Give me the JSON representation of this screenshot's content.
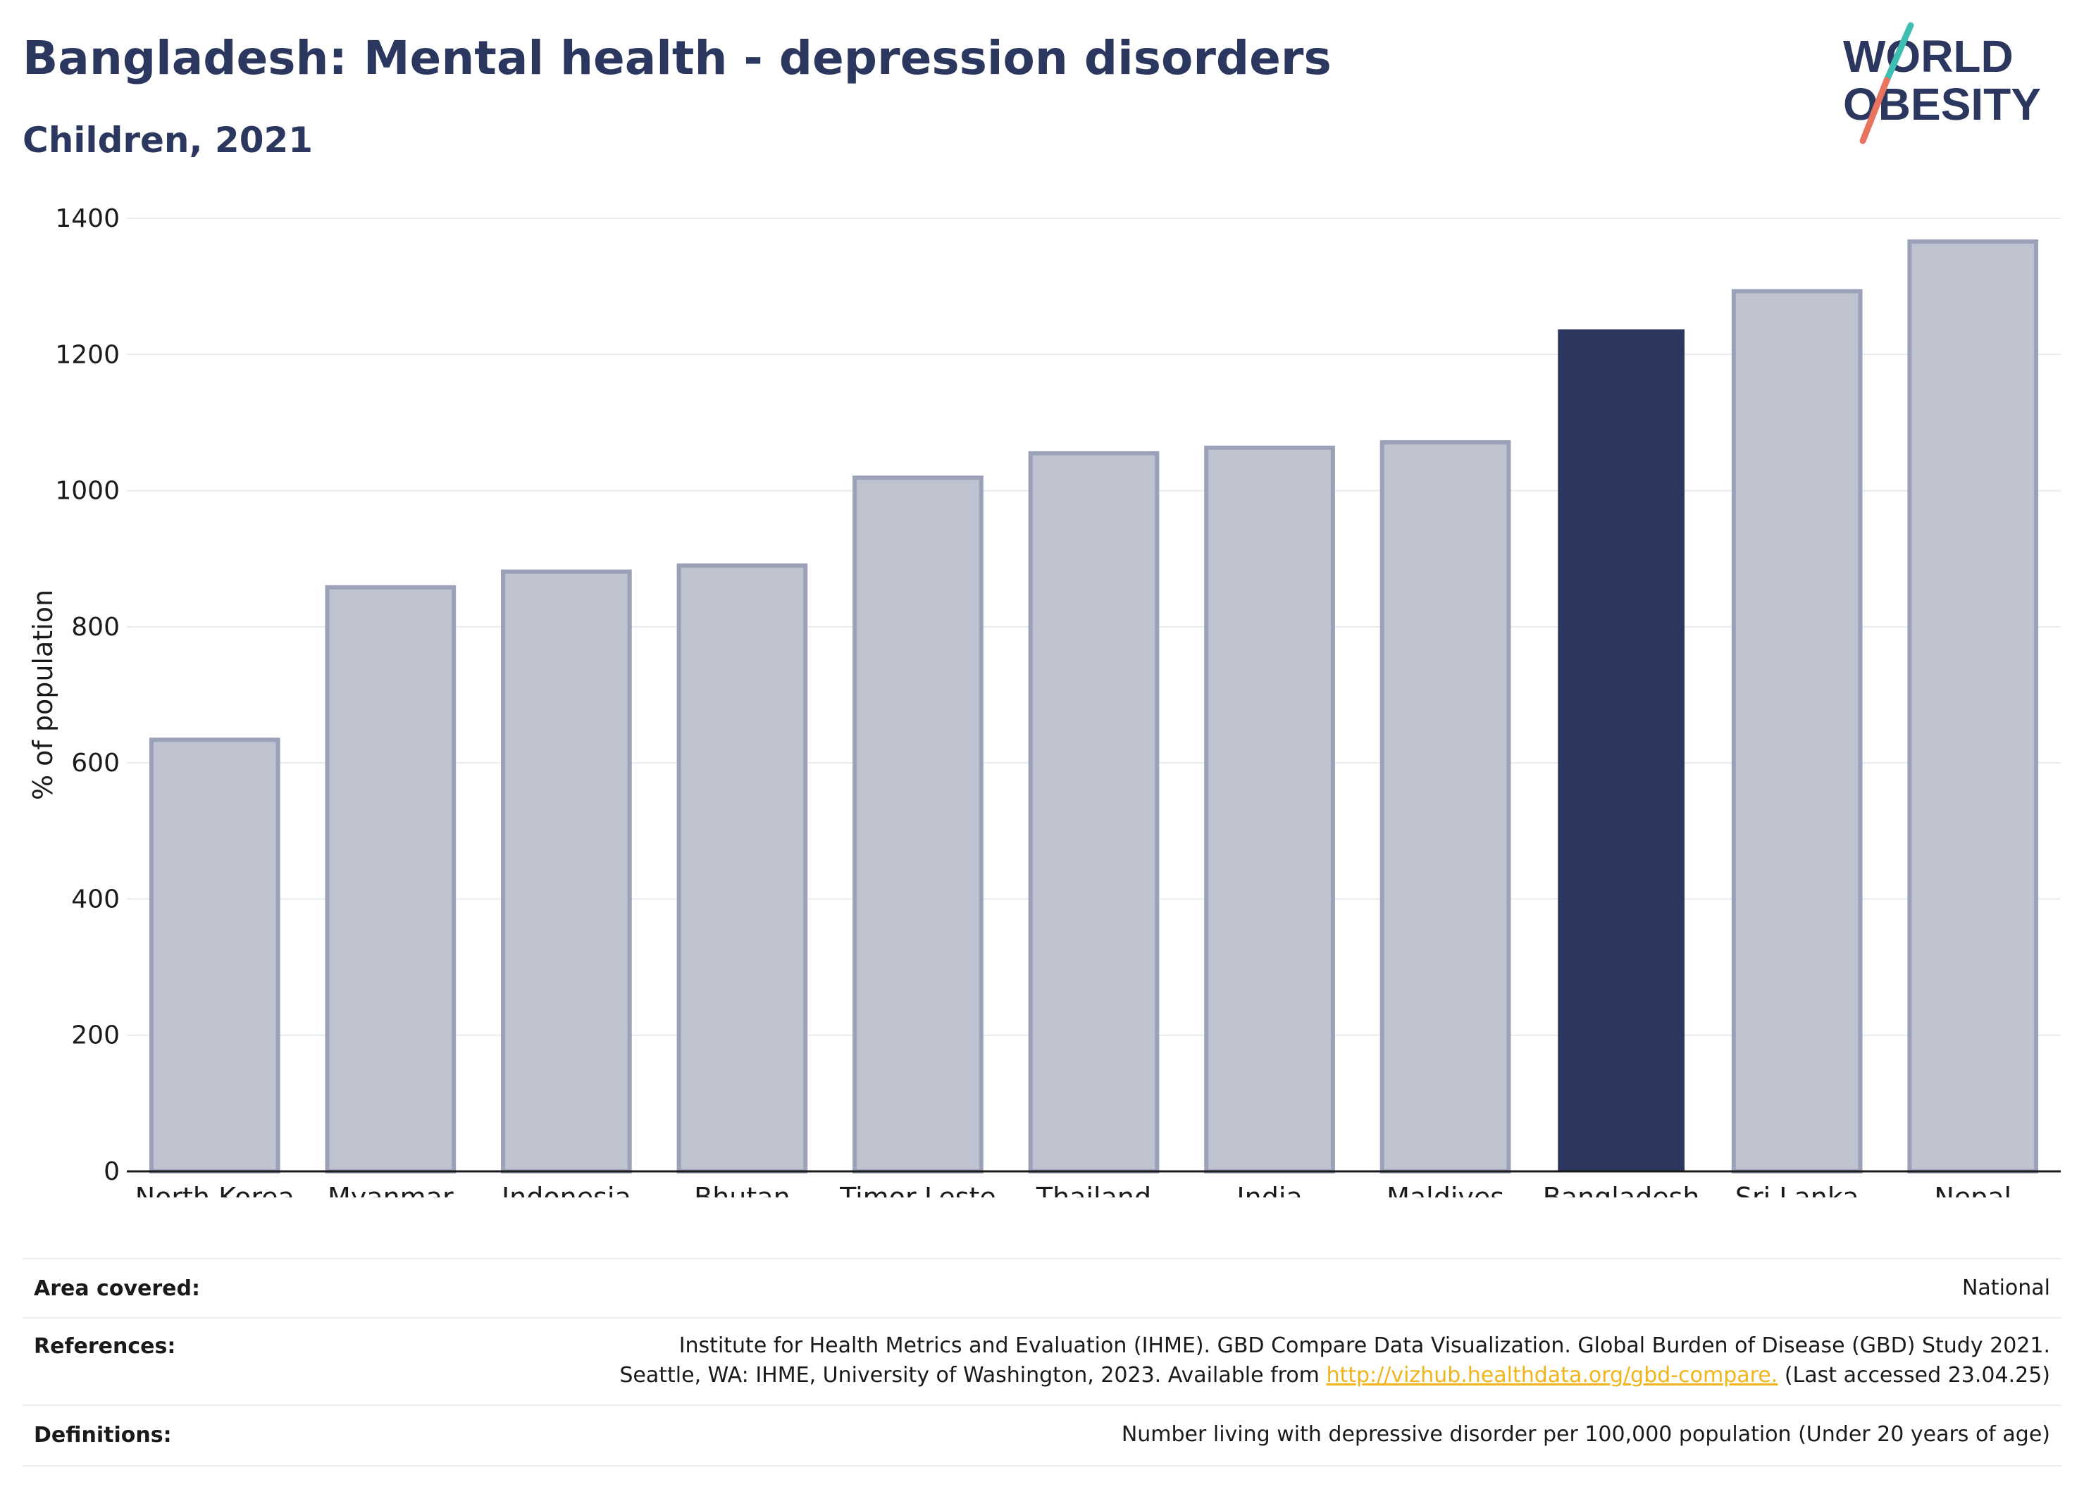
{
  "header": {
    "title": "Bangladesh: Mental health - depression disorders",
    "subtitle": "Children, 2021",
    "logo_line1": "WORLD",
    "logo_line2": "OBESITY"
  },
  "colors": {
    "highlight": "#2b375f",
    "bar_fill": "#bfc3d0",
    "bar_stroke": "#9aa1b8",
    "logo_teal": "#3fbfb3",
    "logo_coral": "#e8735f",
    "link": "#f2b41b"
  },
  "chart_data": {
    "type": "bar",
    "categories": [
      "North Korea",
      "Myanmar",
      "Indonesia",
      "Bhutan",
      "Timor-Leste",
      "Thailand",
      "India",
      "Maldives",
      "Bangladesh",
      "Sri Lanka",
      "Nepal"
    ],
    "values": [
      634,
      858,
      881,
      890,
      1019,
      1055,
      1063,
      1071,
      1237,
      1293,
      1366
    ],
    "highlight": "Bangladesh",
    "ylabel": "% of population",
    "xlabel": "",
    "ylim": [
      0,
      1400
    ],
    "yticks": [
      0,
      200,
      400,
      600,
      800,
      1000,
      1200,
      1400
    ],
    "grid": true
  },
  "meta": {
    "area_label": "Area covered:",
    "area_value": "National",
    "references_label": "References:",
    "references_line1": "Institute for Health Metrics and Evaluation (IHME). GBD Compare Data Visualization. Global Burden of Disease (GBD) Study 2021.",
    "references_line2_pre": "Seattle, WA: IHME, University of Washington, 2023. Available from ",
    "references_link": "http://vizhub.healthdata.org/gbd-compare.",
    "references_line2_post": " (Last accessed 23.04.25)",
    "definitions_label": "Definitions:",
    "definitions_value": "Number living with depressive disorder per 100,000 population (Under 20 years of age)"
  }
}
